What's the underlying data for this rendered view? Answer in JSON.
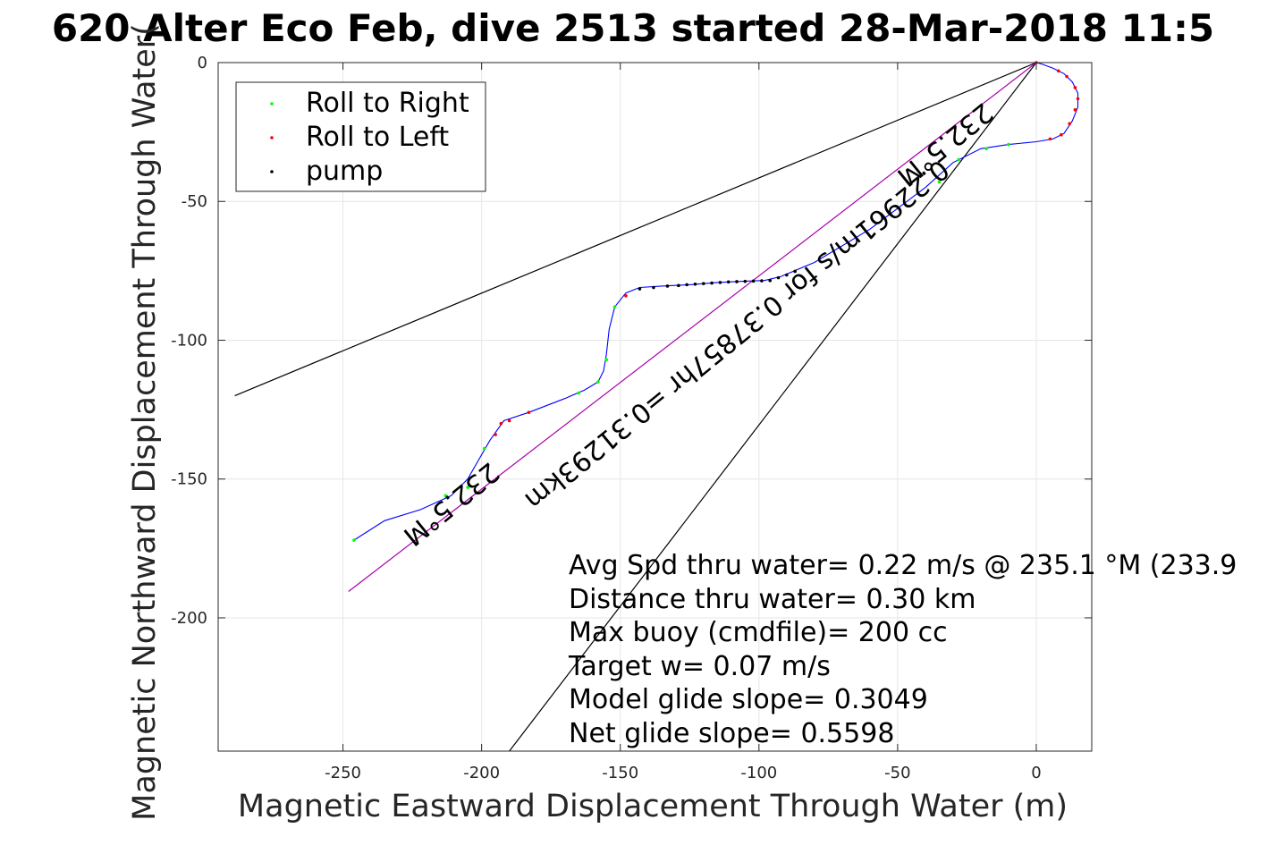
{
  "chart_data": {
    "type": "line",
    "title": "620 Alter Eco Feb, dive 2513 started 28-Mar-2018 11:5",
    "xlabel": "Magnetic Eastward Displacement Through Water (m)",
    "ylabel": "Magnetic Northward Displacement Through Water(",
    "xlim": [
      -295,
      20
    ],
    "ylim": [
      -248,
      0
    ],
    "grid": true,
    "x_ticks": [
      {
        "value": -250,
        "label": "-250"
      },
      {
        "value": -200,
        "label": "-200"
      },
      {
        "value": -150,
        "label": "-150"
      },
      {
        "value": -100,
        "label": "-100"
      },
      {
        "value": -50,
        "label": "-50"
      },
      {
        "value": 0,
        "label": "0"
      }
    ],
    "y_ticks": [
      {
        "value": 0,
        "label": "0"
      },
      {
        "value": -50,
        "label": "-50"
      },
      {
        "value": -100,
        "label": "-100"
      },
      {
        "value": -150,
        "label": "-150"
      },
      {
        "value": -200,
        "label": "-200"
      }
    ],
    "legend": {
      "position": "top-left",
      "entries": [
        {
          "label": "Roll to Right",
          "color": "#00ff00"
        },
        {
          "label": "Roll to Left",
          "color": "#ff0000"
        },
        {
          "label": "pump",
          "color": "#000000"
        }
      ]
    },
    "lines": [
      {
        "color": "#000000",
        "points": [
          [
            -289,
            -120
          ],
          [
            0,
            0
          ]
        ]
      },
      {
        "color": "#000000",
        "points": [
          [
            -190,
            -248
          ],
          [
            0,
            0
          ]
        ]
      },
      {
        "color": "#aa00aa",
        "points": [
          [
            -248,
            -190.5
          ],
          [
            0,
            0
          ]
        ]
      }
    ],
    "track": {
      "color": "#0000ff",
      "points": [
        [
          -246,
          -172
        ],
        [
          -235,
          -165
        ],
        [
          -222,
          -161
        ],
        [
          -211,
          -156
        ],
        [
          -205,
          -150
        ],
        [
          -201,
          -143
        ],
        [
          -197,
          -136
        ],
        [
          -192,
          -129
        ],
        [
          -183,
          -126
        ],
        [
          -170,
          -121
        ],
        [
          -163,
          -118
        ],
        [
          -158,
          -115
        ],
        [
          -156,
          -111
        ],
        [
          -155,
          -105
        ],
        [
          -154,
          -96
        ],
        [
          -152,
          -88
        ],
        [
          -148,
          -83
        ],
        [
          -143,
          -81
        ],
        [
          -135,
          -80.5
        ],
        [
          -125,
          -80
        ],
        [
          -115,
          -79.2
        ],
        [
          -105,
          -78.7
        ],
        [
          -98,
          -78.5
        ],
        [
          -92,
          -77
        ],
        [
          -80,
          -72
        ],
        [
          -60,
          -60
        ],
        [
          -40,
          -45
        ],
        [
          -30,
          -36
        ],
        [
          -20,
          -31
        ],
        [
          -10,
          -29.5
        ],
        [
          0,
          -28.5
        ],
        [
          6,
          -27.5
        ],
        [
          10,
          -25.5
        ],
        [
          13,
          -21
        ],
        [
          15,
          -16
        ],
        [
          15,
          -11
        ],
        [
          13,
          -7
        ],
        [
          10,
          -4
        ],
        [
          6,
          -2
        ],
        [
          2,
          -0.5
        ],
        [
          0,
          0
        ]
      ]
    },
    "markers": {
      "roll_right": {
        "color": "#00ff00",
        "points": [
          [
            -246,
            -172
          ],
          [
            -213,
            -156
          ],
          [
            -205,
            -153
          ],
          [
            -199,
            -139
          ],
          [
            -158,
            -115
          ],
          [
            -155,
            -107
          ],
          [
            -165,
            -119
          ],
          [
            -152,
            -88
          ],
          [
            -35,
            -43
          ],
          [
            -28,
            -35
          ],
          [
            -18,
            -31
          ],
          [
            -10,
            -29.5
          ]
        ]
      },
      "roll_left": {
        "color": "#ff0000",
        "points": [
          [
            -193,
            -130
          ],
          [
            -190,
            -129
          ],
          [
            -195,
            -134
          ],
          [
            -183,
            -126
          ],
          [
            -148,
            -84
          ],
          [
            5,
            -27.5
          ],
          [
            9,
            -26
          ],
          [
            12,
            -22
          ],
          [
            14,
            -17
          ],
          [
            15,
            -13
          ],
          [
            14,
            -9
          ],
          [
            11,
            -5
          ],
          [
            8,
            -3
          ],
          [
            0,
            0
          ]
        ]
      },
      "pump": {
        "color": "#000000",
        "points": [
          [
            -143,
            -81.5
          ],
          [
            -138,
            -81
          ],
          [
            -133,
            -80.5
          ],
          [
            -129,
            -80.3
          ],
          [
            -126,
            -80
          ],
          [
            -123,
            -79.8
          ],
          [
            -120,
            -79.6
          ],
          [
            -117,
            -79.4
          ],
          [
            -114,
            -79.2
          ],
          [
            -111,
            -79
          ],
          [
            -108,
            -78.9
          ],
          [
            -105,
            -78.8
          ],
          [
            -102,
            -78.7
          ],
          [
            -99,
            -78.6
          ],
          [
            -96,
            -78.5
          ],
          [
            -93,
            -77.5
          ],
          [
            -90,
            -76.5
          ],
          [
            -87,
            -75.2
          ]
        ]
      }
    },
    "annotations": [
      {
        "text": "232.5°M",
        "x": -213,
        "y": -156.5,
        "rotation": 140.9
      },
      {
        "text": "232.5°M",
        "x": -35,
        "y": -27,
        "rotation": 140.9
      },
      {
        "text": "0.22961m/s for 0.37857hr =0.31293km",
        "x": -110,
        "y": -95.5,
        "rotation": 140.9
      }
    ],
    "stats": [
      "Avg Spd thru water=  0.22 m/s @ 235.1 °M (233.9",
      "Distance thru water=  0.30 km",
      "Max buoy (cmdfile)= 200 cc",
      "Target w= 0.07 m/s",
      "Model glide slope= 0.3049",
      "Net glide slope= 0.5598"
    ]
  }
}
